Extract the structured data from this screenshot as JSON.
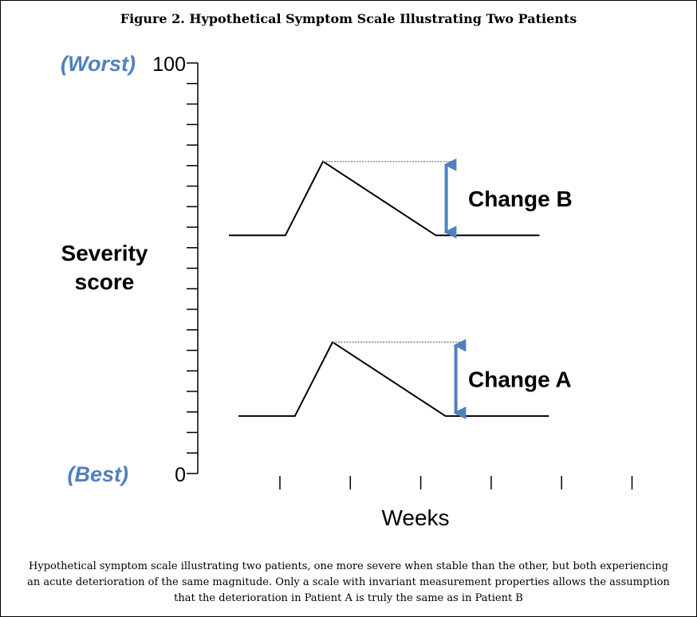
{
  "title": "Figure 2. Hypothetical Symptom Scale Illustrating Two Patients",
  "caption": "Hypothetical symptom scale illustrating two patients, one more severe when stable than the other, but both experiencing an acute deterioration of the same magnitude. Only a scale with invariant measurement properties allows the assumption that the deterioration in Patient A is truly the same as in Patient B",
  "colors": {
    "accent": "#4f81bd",
    "line": "#000000",
    "dotted": "#808080"
  },
  "chart_data": {
    "type": "line",
    "title": "Figure 2. Hypothetical Symptom Scale Illustrating Two Patients",
    "xlabel": "Weeks",
    "ylabel": "Severity score",
    "ylabel_lines": [
      "Severity",
      "score"
    ],
    "ylim": [
      0,
      100
    ],
    "y_ticks_labeled": [
      {
        "value": 100,
        "label": "100",
        "anchor": "(Worst)"
      },
      {
        "value": 0,
        "label": "0",
        "anchor": "(Best)"
      }
    ],
    "y_minor_tick_count": 21,
    "x_tick_count": 6,
    "series": [
      {
        "profile_x": [
          0.0,
          0.6,
          1.0,
          2.2,
          3.3
        ],
        "values": [
          58,
          58,
          76,
          58,
          58
        ],
        "change_label": "Change B",
        "change_value": 18
      },
      {
        "profile_x": [
          0.0,
          0.6,
          1.0,
          2.2,
          3.3
        ],
        "values": [
          14,
          14,
          32,
          14,
          14
        ],
        "change_label": "Change A",
        "change_value": 18
      }
    ]
  }
}
